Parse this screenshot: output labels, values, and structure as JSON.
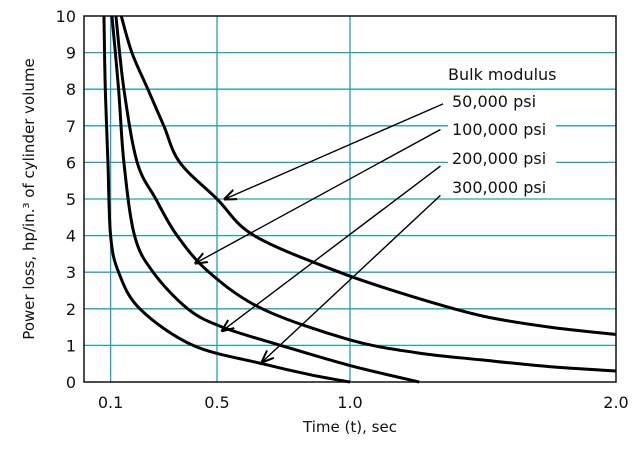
{
  "chart_data": {
    "type": "line",
    "title": "",
    "xlabel": "Time (t), sec",
    "ylabel": "Power loss, hp/in.³ of cylinder volume",
    "xlim": [
      0,
      2.0
    ],
    "ylim": [
      0,
      10
    ],
    "x_ticks": [
      "0.1",
      "0.5",
      "1.0",
      "2.0"
    ],
    "x_tick_values": [
      0.1,
      0.5,
      1.0,
      2.0
    ],
    "y_ticks": [
      "0",
      "1",
      "2",
      "3",
      "4",
      "5",
      "6",
      "7",
      "8",
      "9",
      "10"
    ],
    "grid": true,
    "grid_color": "#1ea3b4",
    "line_color": "#000000",
    "legend_title": "Bulk modulus",
    "legend_placement": "top-right",
    "series": [
      {
        "name": "50,000 psi",
        "x": [
          0.14,
          0.18,
          0.24,
          0.3,
          0.36,
          0.5,
          0.64,
          0.96,
          1.25,
          1.5,
          1.75,
          2.0
        ],
        "y": [
          10,
          9,
          8,
          7,
          6,
          5,
          4,
          3,
          2.3,
          1.8,
          1.5,
          1.3
        ],
        "arrow_from": [
          1.35,
          7.6
        ],
        "arrow_to": [
          0.53,
          5.0
        ]
      },
      {
        "name": "100,000 psi",
        "x": [
          0.12,
          0.15,
          0.2,
          0.27,
          0.35,
          0.47,
          0.67,
          1.0,
          1.25,
          1.5,
          1.75,
          2.0
        ],
        "y": [
          10,
          8,
          6,
          5,
          4,
          3,
          2,
          1.15,
          0.8,
          0.6,
          0.42,
          0.3
        ],
        "arrow_from": [
          1.34,
          6.9
        ],
        "arrow_to": [
          0.42,
          3.25
        ]
      },
      {
        "name": "200,000 psi",
        "x": [
          0.105,
          0.13,
          0.15,
          0.19,
          0.26,
          0.39,
          0.52,
          0.74,
          1.0,
          1.26
        ],
        "y": [
          10,
          8,
          6,
          4,
          3,
          2,
          1.5,
          1.0,
          0.45,
          0
        ],
        "arrow_from": [
          1.34,
          5.9
        ],
        "arrow_to": [
          0.52,
          1.4
        ]
      },
      {
        "name": "300,000 psi",
        "x": [
          0.075,
          0.08,
          0.09,
          0.1,
          0.13,
          0.21,
          0.41,
          0.67,
          0.85,
          1.0
        ],
        "y": [
          10,
          8,
          6,
          4,
          3,
          2,
          1,
          0.5,
          0.2,
          0
        ],
        "arrow_from": [
          1.34,
          5.1
        ],
        "arrow_to": [
          0.67,
          0.55
        ]
      }
    ]
  }
}
